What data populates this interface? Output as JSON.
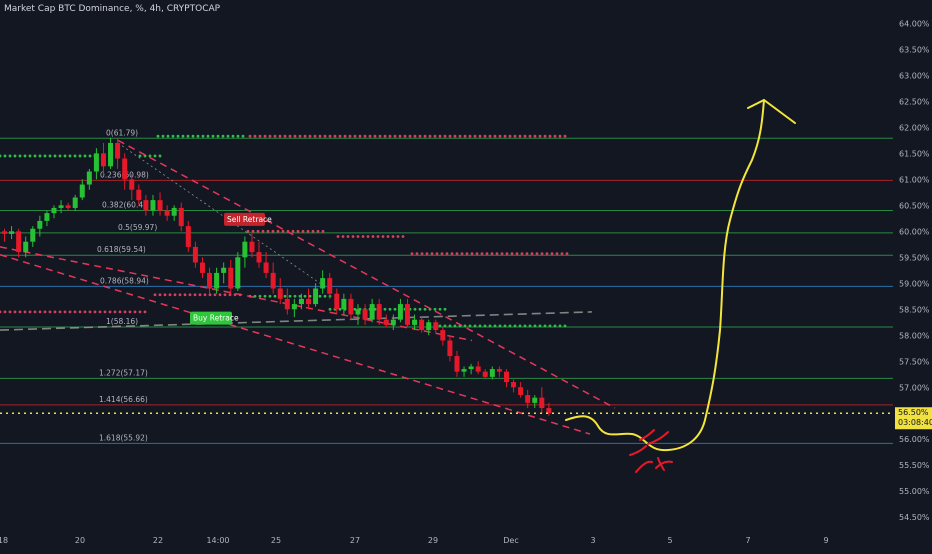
{
  "header": {
    "title": "Market Cap BTC Dominance, %, 4h, CRYPTOCAP"
  },
  "colors": {
    "background": "#131722",
    "up": "#26c234",
    "down": "#e6192b",
    "trendline": "#e6375a",
    "green_dots": "#2dbf4a",
    "red_dots": "#d6405e",
    "fib_line": "#2e9e4a",
    "fib_red_line": "#c4242b",
    "fib_blue_line": "#2a7fbf",
    "price_line": "#f0e040",
    "drawing": "#f2e63a",
    "axis_text": "#b2b5be"
  },
  "chart_data": {
    "type": "candlestick",
    "title": "Market Cap BTC Dominance, %, 4h, CRYPTOCAP",
    "ylim": [
      54.35,
      64.2
    ],
    "y_ticks": [
      "64.00%",
      "63.50%",
      "63.00%",
      "62.50%",
      "62.00%",
      "61.50%",
      "61.00%",
      "60.50%",
      "60.00%",
      "59.50%",
      "59.00%",
      "58.50%",
      "58.00%",
      "57.50%",
      "57.00%",
      "56.50%",
      "56.00%",
      "55.50%",
      "55.00%",
      "54.50%"
    ],
    "x_tick_labels": [
      "18",
      "20",
      "22",
      "14:00",
      "25",
      "27",
      "29",
      "Dec",
      "3",
      "5",
      "7",
      "9"
    ],
    "current_price": {
      "label": "56.50%",
      "value": 56.5,
      "countdown": "03:08:40"
    },
    "fib_levels": [
      {
        "label": "0(61.79)",
        "value": 61.79
      },
      {
        "label": "0.236(60.98)",
        "value": 60.98
      },
      {
        "label": "0.382(60.4)",
        "value": 60.4
      },
      {
        "label": "0.5(59.97)",
        "value": 59.97
      },
      {
        "label": "0.618(59.54)",
        "value": 59.54
      },
      {
        "label": "0.786(58.94)",
        "value": 58.94
      },
      {
        "label": "1(58.16)",
        "value": 58.16
      },
      {
        "label": "1.272(57.17)",
        "value": 57.17
      },
      {
        "label": "1.414(56.66)",
        "value": 56.66
      },
      {
        "label": "1.618(55.92)",
        "value": 55.92
      }
    ],
    "annotations": [
      {
        "label": "Sell Retrace",
        "type": "sell"
      },
      {
        "label": "Buy Retrace",
        "type": "buy"
      }
    ],
    "candles": [
      [
        60.0,
        60.05,
        59.8,
        59.95
      ],
      [
        59.95,
        60.1,
        59.85,
        60.0
      ],
      [
        60.0,
        60.05,
        59.5,
        59.6
      ],
      [
        59.6,
        59.9,
        59.5,
        59.8
      ],
      [
        59.8,
        60.1,
        59.7,
        60.05
      ],
      [
        60.05,
        60.3,
        59.9,
        60.2
      ],
      [
        60.2,
        60.4,
        60.1,
        60.35
      ],
      [
        60.35,
        60.5,
        60.25,
        60.45
      ],
      [
        60.45,
        60.6,
        60.35,
        60.5
      ],
      [
        60.5,
        60.55,
        60.4,
        60.45
      ],
      [
        60.45,
        60.7,
        60.4,
        60.65
      ],
      [
        60.65,
        61.0,
        60.6,
        60.9
      ],
      [
        60.9,
        61.2,
        60.8,
        61.15
      ],
      [
        61.15,
        61.6,
        61.0,
        61.5
      ],
      [
        61.5,
        61.7,
        61.1,
        61.25
      ],
      [
        61.25,
        61.8,
        61.2,
        61.7
      ],
      [
        61.7,
        61.8,
        61.2,
        61.4
      ],
      [
        61.4,
        61.5,
        60.8,
        61.0
      ],
      [
        61.0,
        61.1,
        60.6,
        60.8
      ],
      [
        60.8,
        60.9,
        60.5,
        60.6
      ],
      [
        60.6,
        60.7,
        60.3,
        60.4
      ],
      [
        60.4,
        60.7,
        60.3,
        60.6
      ],
      [
        60.6,
        60.75,
        60.3,
        60.4
      ],
      [
        60.4,
        60.5,
        60.2,
        60.3
      ],
      [
        60.3,
        60.5,
        60.2,
        60.45
      ],
      [
        60.45,
        60.55,
        60.0,
        60.1
      ],
      [
        60.1,
        60.2,
        59.6,
        59.7
      ],
      [
        59.7,
        59.8,
        59.3,
        59.4
      ],
      [
        59.4,
        59.5,
        59.1,
        59.2
      ],
      [
        59.2,
        59.3,
        58.8,
        58.9
      ],
      [
        58.9,
        59.3,
        58.8,
        59.2
      ],
      [
        59.2,
        59.4,
        59.0,
        59.3
      ],
      [
        59.3,
        59.45,
        58.8,
        58.9
      ],
      [
        58.9,
        59.6,
        58.85,
        59.5
      ],
      [
        59.5,
        59.9,
        59.3,
        59.8
      ],
      [
        59.8,
        59.95,
        59.5,
        59.6
      ],
      [
        59.6,
        59.8,
        59.3,
        59.4
      ],
      [
        59.4,
        59.6,
        59.1,
        59.2
      ],
      [
        59.2,
        59.4,
        58.8,
        58.9
      ],
      [
        58.9,
        59.1,
        58.6,
        58.7
      ],
      [
        58.7,
        58.9,
        58.4,
        58.5
      ],
      [
        58.5,
        58.7,
        58.35,
        58.6
      ],
      [
        58.6,
        58.8,
        58.5,
        58.7
      ],
      [
        58.7,
        58.9,
        58.5,
        58.6
      ],
      [
        58.6,
        59.0,
        58.55,
        58.9
      ],
      [
        58.9,
        59.25,
        58.8,
        59.1
      ],
      [
        59.1,
        59.2,
        58.7,
        58.8
      ],
      [
        58.8,
        58.9,
        58.4,
        58.5
      ],
      [
        58.5,
        58.8,
        58.4,
        58.7
      ],
      [
        58.7,
        58.8,
        58.3,
        58.4
      ],
      [
        58.4,
        58.6,
        58.2,
        58.5
      ],
      [
        58.5,
        58.6,
        58.2,
        58.3
      ],
      [
        58.3,
        58.7,
        58.25,
        58.6
      ],
      [
        58.6,
        58.7,
        58.2,
        58.3
      ],
      [
        58.3,
        58.4,
        58.15,
        58.2
      ],
      [
        58.2,
        58.4,
        58.1,
        58.3
      ],
      [
        58.3,
        58.7,
        58.25,
        58.6
      ],
      [
        58.6,
        58.7,
        58.15,
        58.2
      ],
      [
        58.2,
        58.4,
        58.1,
        58.3
      ],
      [
        58.3,
        58.35,
        58.05,
        58.1
      ],
      [
        58.1,
        58.3,
        58.0,
        58.25
      ],
      [
        58.25,
        58.3,
        58.05,
        58.1
      ],
      [
        58.1,
        58.15,
        57.8,
        57.9
      ],
      [
        57.9,
        58.0,
        57.5,
        57.6
      ],
      [
        57.6,
        57.7,
        57.2,
        57.3
      ],
      [
        57.3,
        57.4,
        57.2,
        57.35
      ],
      [
        57.35,
        57.45,
        57.25,
        57.4
      ],
      [
        57.4,
        57.5,
        57.25,
        57.3
      ],
      [
        57.3,
        57.35,
        57.15,
        57.2
      ],
      [
        57.2,
        57.4,
        57.15,
        57.35
      ],
      [
        57.35,
        57.4,
        57.2,
        57.3
      ],
      [
        57.3,
        57.35,
        57.0,
        57.1
      ],
      [
        57.1,
        57.15,
        56.9,
        57.0
      ],
      [
        57.0,
        57.1,
        56.8,
        56.85
      ],
      [
        56.85,
        56.95,
        56.6,
        56.7
      ],
      [
        56.7,
        56.85,
        56.6,
        56.8
      ],
      [
        56.8,
        57.0,
        56.5,
        56.6
      ],
      [
        56.6,
        56.7,
        56.45,
        56.5
      ]
    ]
  }
}
